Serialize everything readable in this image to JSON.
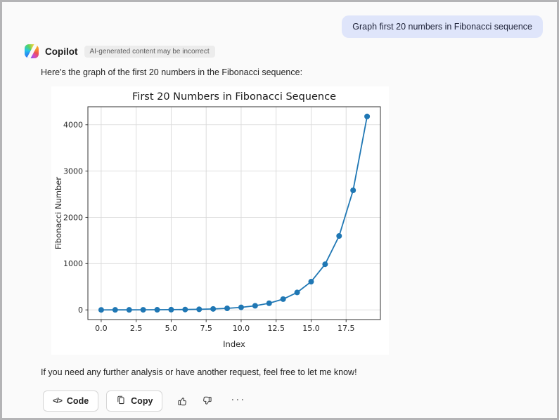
{
  "user_message": {
    "text": "Graph first 20 numbers in Fibonacci sequence"
  },
  "assistant": {
    "name": "Copilot",
    "disclaimer": "AI-generated content may be incorrect",
    "intro_text": "Here's the graph of the first 20 numbers in the Fibonacci sequence:",
    "outro_text": "If you need any further analysis or have another request, feel free to let me know!"
  },
  "toolbar": {
    "code_label": "Code",
    "code_icon_glyph": "</>",
    "copy_label": "Copy",
    "more_glyph": "···"
  },
  "colors": {
    "user_bubble_bg": "#dfe5fa",
    "line_color": "#1f77b4",
    "grid_color": "#d9d9d9",
    "spine_color": "#333333",
    "badge_bg": "#ececec"
  },
  "chart_data": {
    "type": "line",
    "title": "First 20 Numbers in Fibonacci Sequence",
    "xlabel": "Index",
    "ylabel": "Fibonacci Number",
    "x": [
      0,
      1,
      2,
      3,
      4,
      5,
      6,
      7,
      8,
      9,
      10,
      11,
      12,
      13,
      14,
      15,
      16,
      17,
      18,
      19
    ],
    "y": [
      0,
      1,
      1,
      2,
      3,
      5,
      8,
      13,
      21,
      34,
      55,
      89,
      144,
      233,
      377,
      610,
      987,
      1597,
      2584,
      4181
    ],
    "x_ticks": [
      0.0,
      2.5,
      5.0,
      7.5,
      10.0,
      12.5,
      15.0,
      17.5
    ],
    "x_tick_labels": [
      "0.0",
      "2.5",
      "5.0",
      "7.5",
      "10.0",
      "12.5",
      "15.0",
      "17.5"
    ],
    "y_ticks": [
      0,
      1000,
      2000,
      3000,
      4000
    ],
    "y_tick_labels": [
      "0",
      "1000",
      "2000",
      "3000",
      "4000"
    ],
    "xlim": [
      -0.95,
      19.95
    ],
    "ylim": [
      -209,
      4390
    ],
    "grid": true,
    "legend": false,
    "line_color": "#1f77b4",
    "marker": "o"
  }
}
